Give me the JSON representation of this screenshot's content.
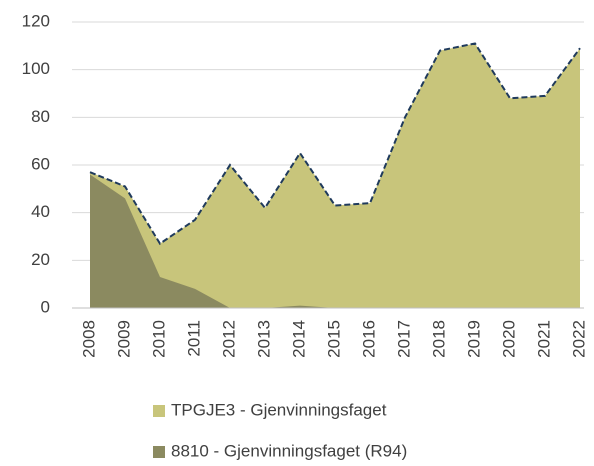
{
  "chart_data": {
    "type": "area",
    "categories": [
      "2008",
      "2009",
      "2010",
      "2011",
      "2012",
      "2013",
      "2014",
      "2015",
      "2016",
      "2017",
      "2018",
      "2019",
      "2020",
      "2021",
      "2022"
    ],
    "series": [
      {
        "name": "TPGJE3 - Gjenvinningsfaget",
        "color": "#c8c57b",
        "line_color": "#1f3a5c",
        "values": [
          57,
          51,
          27,
          37,
          60,
          42,
          65,
          43,
          44,
          80,
          108,
          111,
          88,
          89,
          109
        ]
      },
      {
        "name": "8810 - Gjenvinningsfaget (R94)",
        "color": "#8b8a60",
        "values": [
          56,
          46,
          13,
          8,
          0,
          0,
          1,
          0,
          0,
          0,
          0,
          0,
          0,
          0,
          0
        ]
      }
    ],
    "ylim": [
      0,
      120
    ],
    "yticks": [
      0,
      20,
      40,
      60,
      80,
      100,
      120
    ],
    "grid": true
  }
}
